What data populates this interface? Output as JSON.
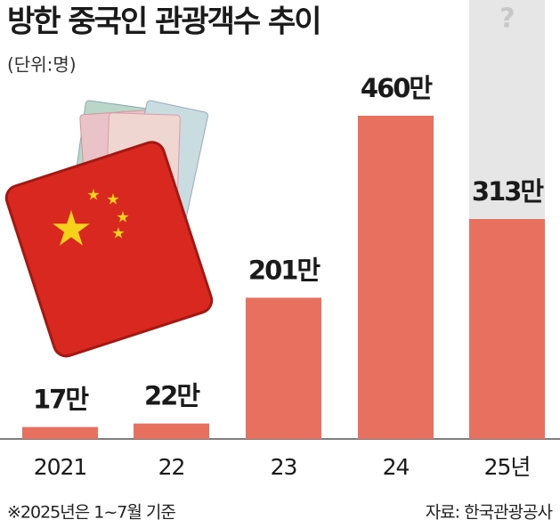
{
  "chart_data": {
    "type": "bar",
    "title": "방한 중국인 관광객수 추이",
    "subtitle": "(단위:명)",
    "categories": [
      "2021",
      "22",
      "23",
      "24",
      "25년"
    ],
    "values": [
      17,
      22,
      201,
      460,
      313
    ],
    "value_labels": [
      "17만",
      "22만",
      "201만",
      "460만",
      "313만"
    ],
    "color": "#e8705f",
    "annotation": "?",
    "note": "※2025년은 1~7월 기준",
    "source": "자료: 한국관광공사"
  }
}
